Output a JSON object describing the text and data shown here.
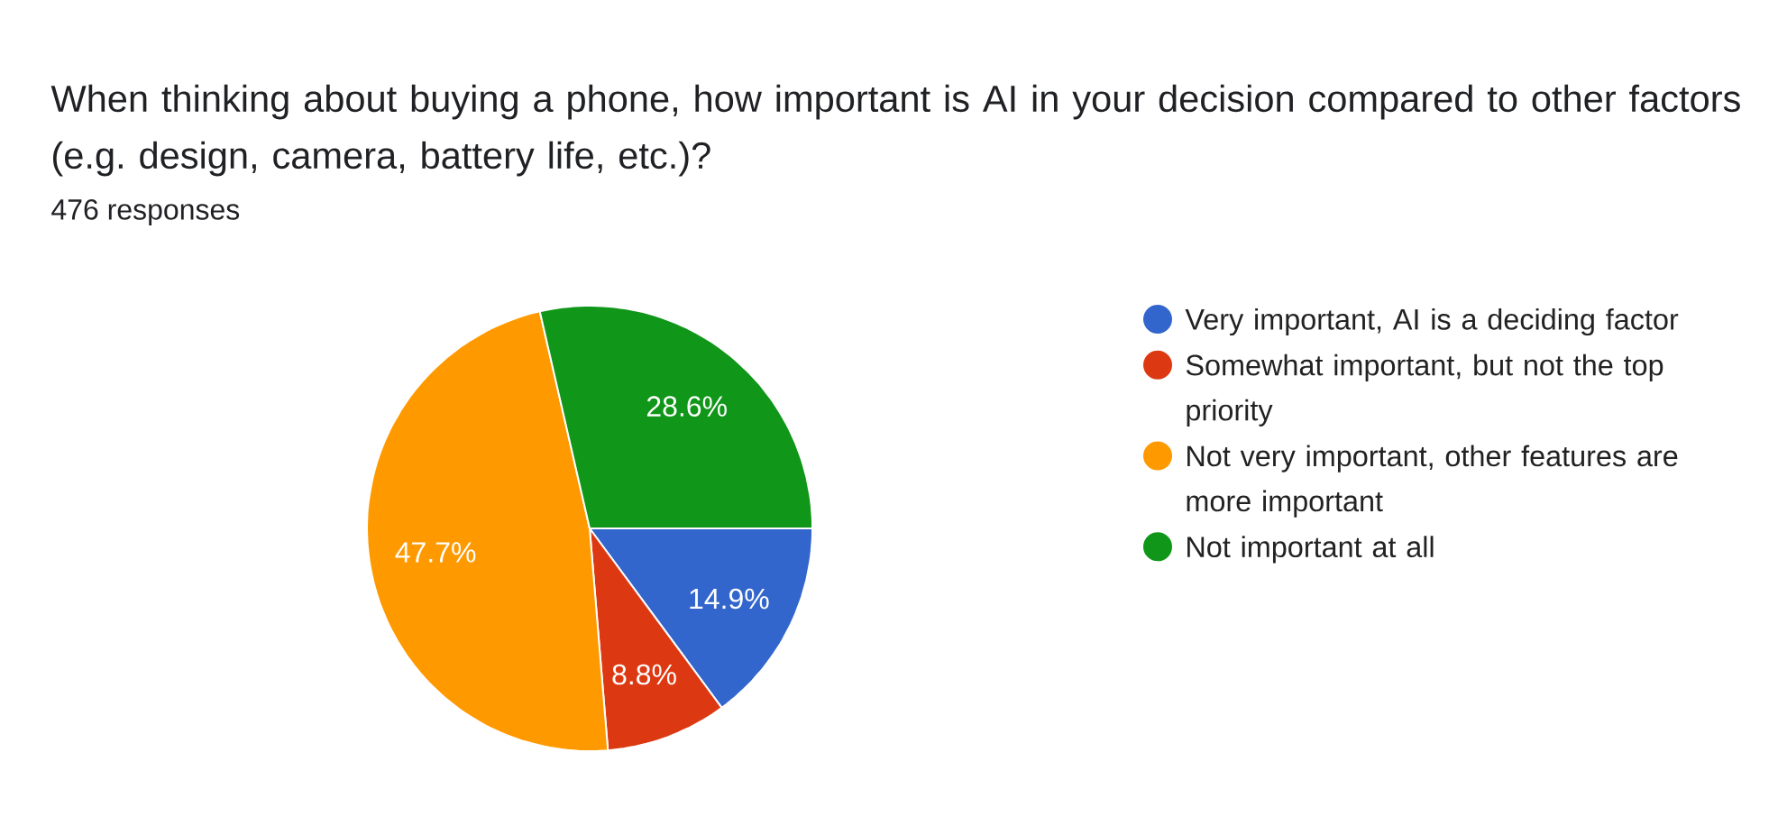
{
  "chart_data": {
    "type": "pie",
    "title": "When thinking about buying a phone, how important is AI in your decision compared to other factors (e.g. design, camera, battery life, etc.)?",
    "subtitle": "476 responses",
    "categories": [
      "Very important, AI is a deciding factor",
      "Somewhat important, but not the top priority",
      "Not very important, other features are more important",
      "Not important at all"
    ],
    "values": [
      14.9,
      8.8,
      47.7,
      28.6
    ],
    "colors": [
      "#3366cc",
      "#dc3912",
      "#ff9900",
      "#109618"
    ],
    "value_labels": [
      "14.9%",
      "8.8%",
      "47.7%",
      "28.6%"
    ],
    "legend": "right"
  }
}
